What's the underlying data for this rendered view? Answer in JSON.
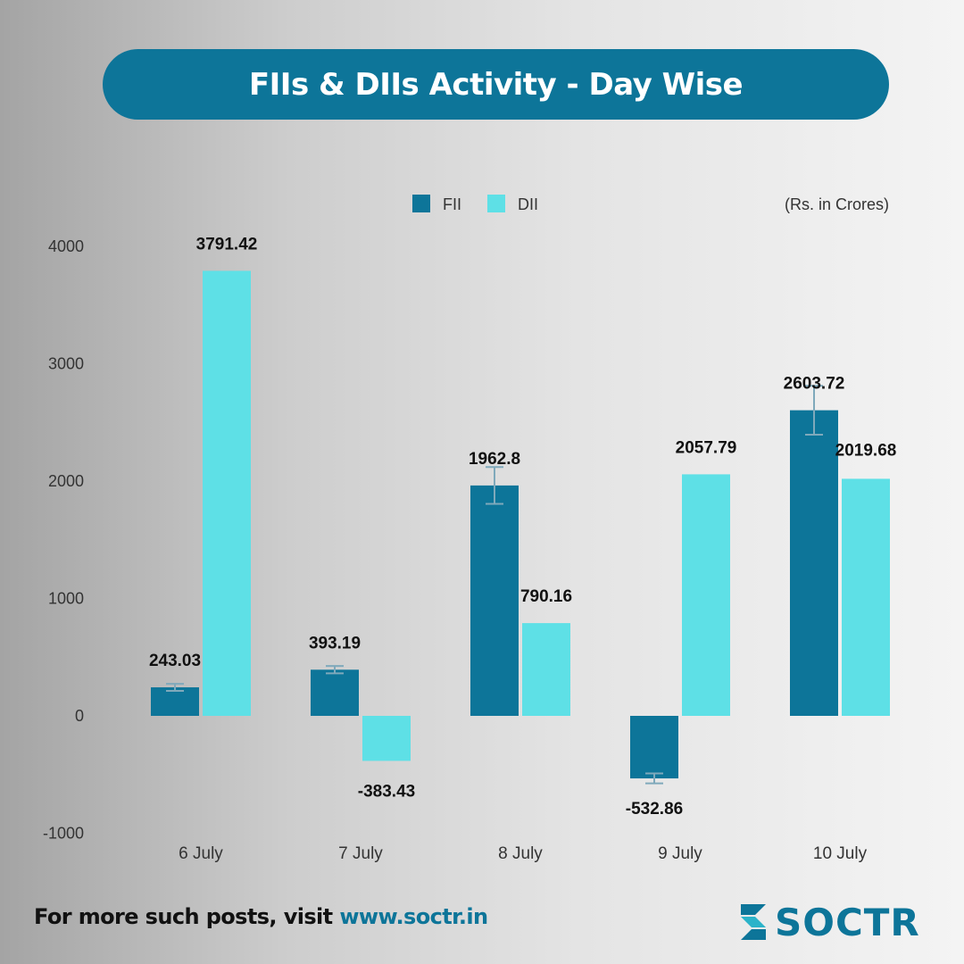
{
  "title": "FIIs & DIIs Activity - Day Wise",
  "unit_note": "(Rs. in Crores)",
  "footer": {
    "prefix": "For more such posts, visit ",
    "url": "www.soctr.in"
  },
  "logo": {
    "text": "SOCTR",
    "icon": "soctr-logo-icon"
  },
  "colors": {
    "fii": "#0d7599",
    "dii": "#5ee0e6",
    "title_bg": "#0d7599",
    "error_bar": "#7fa9bb"
  },
  "chart_data": {
    "type": "bar",
    "categories": [
      "6 July",
      "7 July",
      "8 July",
      "9 July",
      "10 July"
    ],
    "series": [
      {
        "name": "FII",
        "values": [
          243.03,
          393.19,
          1962.8,
          -532.86,
          2603.72
        ]
      },
      {
        "name": "DII",
        "values": [
          3791.42,
          -383.43,
          790.16,
          2057.79,
          2019.68
        ]
      }
    ],
    "ylim": [
      -1000,
      4000
    ],
    "yticks": [
      4000,
      3000,
      2000,
      1000,
      0,
      -1000
    ],
    "legend": "top",
    "grid": false
  }
}
